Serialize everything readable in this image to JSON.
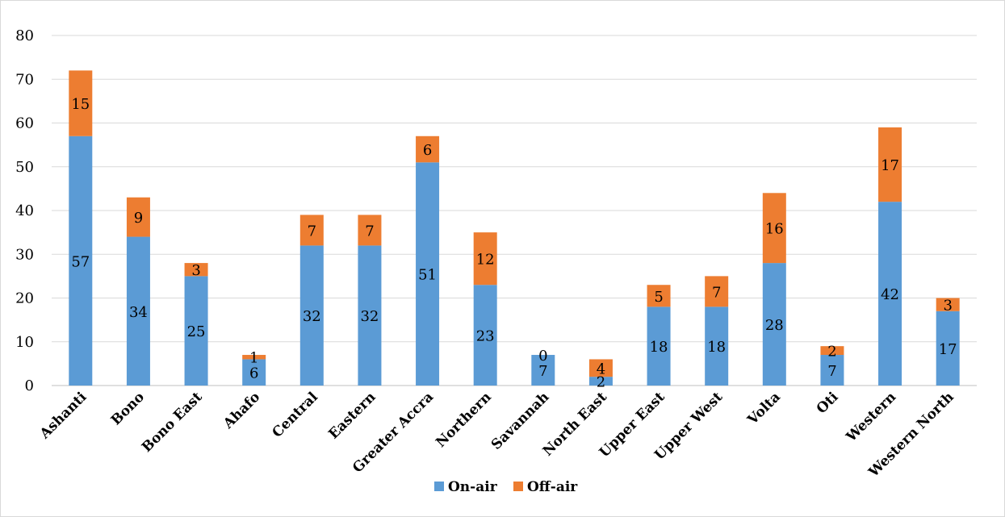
{
  "chart_data": {
    "type": "bar",
    "stacked": true,
    "categories": [
      "Ashanti",
      "Bono",
      "Bono East",
      "Ahafo",
      "Central",
      "Eastern",
      "Greater Accra",
      "Northern",
      "Savannah",
      "North East",
      "Upper East",
      "Upper West",
      "Volta",
      "Oti",
      "Western",
      "Western North"
    ],
    "series": [
      {
        "name": "On-air",
        "color": "#5b9bd5",
        "values": [
          57,
          34,
          25,
          6,
          32,
          32,
          51,
          23,
          7,
          2,
          18,
          18,
          28,
          7,
          42,
          17
        ]
      },
      {
        "name": "Off-air",
        "color": "#ed7d31",
        "values": [
          15,
          9,
          3,
          1,
          7,
          7,
          6,
          12,
          0,
          4,
          5,
          7,
          16,
          2,
          17,
          3
        ]
      }
    ],
    "ylim": [
      0,
      80
    ],
    "yticks": [
      0,
      10,
      20,
      30,
      40,
      50,
      60,
      70,
      80
    ],
    "grid": true,
    "legend_position": "bottom",
    "title": "",
    "xlabel": "",
    "ylabel": ""
  }
}
